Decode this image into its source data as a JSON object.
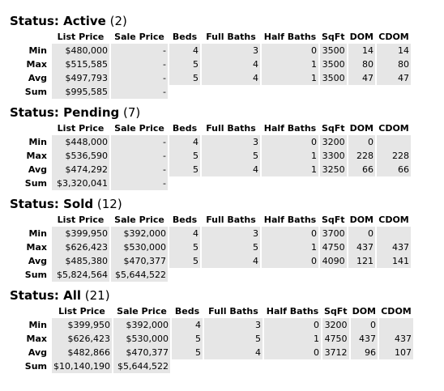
{
  "columns": [
    "",
    "List Price",
    "Sale Price",
    "Beds",
    "Full Baths",
    "Half Baths",
    "SqFt",
    "DOM",
    "CDOM"
  ],
  "sections": [
    {
      "label": "Status: Active",
      "count": "(2)",
      "rows": [
        {
          "name": "Min",
          "cells": [
            "$480,000",
            "-",
            "4",
            "3",
            "0",
            "3500",
            "14",
            "14"
          ]
        },
        {
          "name": "Max",
          "cells": [
            "$515,585",
            "-",
            "5",
            "4",
            "1",
            "3500",
            "80",
            "80"
          ]
        },
        {
          "name": "Avg",
          "cells": [
            "$497,793",
            "-",
            "5",
            "4",
            "1",
            "3500",
            "47",
            "47"
          ]
        },
        {
          "name": "Sum",
          "cells": [
            "$995,585",
            "-",
            "",
            "",
            "",
            "",
            "",
            ""
          ]
        }
      ]
    },
    {
      "label": "Status: Pending",
      "count": "(7)",
      "rows": [
        {
          "name": "Min",
          "cells": [
            "$448,000",
            "-",
            "4",
            "3",
            "0",
            "3200",
            "0",
            ""
          ]
        },
        {
          "name": "Max",
          "cells": [
            "$536,590",
            "-",
            "5",
            "5",
            "1",
            "3300",
            "228",
            "228"
          ]
        },
        {
          "name": "Avg",
          "cells": [
            "$474,292",
            "-",
            "5",
            "4",
            "1",
            "3250",
            "66",
            "66"
          ]
        },
        {
          "name": "Sum",
          "cells": [
            "$3,320,041",
            "-",
            "",
            "",
            "",
            "",
            "",
            ""
          ]
        }
      ]
    },
    {
      "label": "Status: Sold",
      "count": "(12)",
      "rows": [
        {
          "name": "Min",
          "cells": [
            "$399,950",
            "$392,000",
            "4",
            "3",
            "0",
            "3700",
            "0",
            ""
          ]
        },
        {
          "name": "Max",
          "cells": [
            "$626,423",
            "$530,000",
            "5",
            "5",
            "1",
            "4750",
            "437",
            "437"
          ]
        },
        {
          "name": "Avg",
          "cells": [
            "$485,380",
            "$470,377",
            "5",
            "4",
            "0",
            "4090",
            "121",
            "141"
          ]
        },
        {
          "name": "Sum",
          "cells": [
            "$5,824,564",
            "$5,644,522",
            "",
            "",
            "",
            "",
            "",
            ""
          ]
        }
      ]
    },
    {
      "label": "Status: All",
      "count": "(21)",
      "rows": [
        {
          "name": "Min",
          "cells": [
            "$399,950",
            "$392,000",
            "4",
            "3",
            "0",
            "3200",
            "0",
            ""
          ]
        },
        {
          "name": "Max",
          "cells": [
            "$626,423",
            "$530,000",
            "5",
            "5",
            "1",
            "4750",
            "437",
            "437"
          ]
        },
        {
          "name": "Avg",
          "cells": [
            "$482,866",
            "$470,377",
            "5",
            "4",
            "0",
            "3712",
            "96",
            "107"
          ]
        },
        {
          "name": "Sum",
          "cells": [
            "$10,140,190",
            "$5,644,522",
            "",
            "",
            "",
            "",
            "",
            ""
          ]
        }
      ]
    }
  ]
}
